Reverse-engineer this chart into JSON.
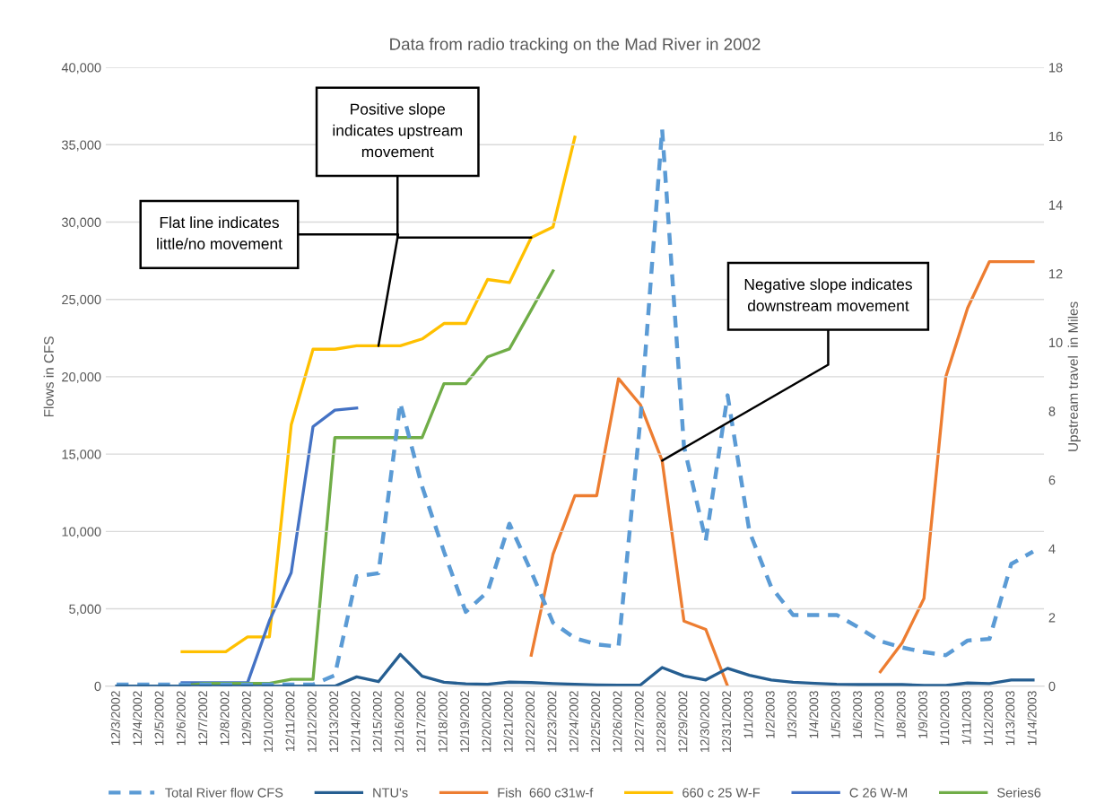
{
  "chart_data": {
    "type": "line",
    "title": "Data from radio tracking on the Mad River in 2002",
    "ylabel": "Flows in CFS",
    "y2label": "Upstream travel  in Miles",
    "categories": [
      "12/3/2002",
      "12/4/2002",
      "12/5/2002",
      "12/6/2002",
      "12/7/2002",
      "12/8/2002",
      "12/9/2002",
      "12/10/2002",
      "12/11/2002",
      "12/12/2002",
      "12/13/2002",
      "12/14/2002",
      "12/15/2002",
      "12/16/2002",
      "12/17/2002",
      "12/18/2002",
      "12/19/2002",
      "12/20/2002",
      "12/21/2002",
      "12/22/2002",
      "12/23/2002",
      "12/24/2002",
      "12/25/2002",
      "12/26/2002",
      "12/27/2002",
      "12/28/2002",
      "12/29/2002",
      "12/30/2002",
      "12/31/2002",
      "1/1/2003",
      "1/2/2003",
      "1/3/2003",
      "1/4/2003",
      "1/5/2003",
      "1/6/2003",
      "1/7/2003",
      "1/8/2003",
      "1/9/2003",
      "1/10/2003",
      "1/11/2003",
      "1/12/2003",
      "1/13/2003",
      "1/14/2003"
    ],
    "series": [
      {
        "name": "Total River flow CFS",
        "color": "#5b9bd5",
        "line_style": "dashed",
        "values": [
          100,
          100,
          100,
          100,
          100,
          100,
          100,
          100,
          100,
          100,
          700,
          7100,
          7300,
          18300,
          12900,
          8700,
          4800,
          6100,
          10500,
          7400,
          4100,
          3100,
          2700,
          2550,
          17200,
          36000,
          15500,
          9400,
          18800,
          10000,
          6400,
          4600,
          4600,
          4600,
          3800,
          2900,
          2500,
          2200,
          2000,
          2950,
          3050,
          7900,
          8700
        ]
      },
      {
        "name": "NTU's",
        "color": "#255e91",
        "line_style": "solid",
        "values": [
          0,
          0,
          0,
          0,
          0,
          0,
          0,
          0,
          0,
          0,
          0,
          600,
          290,
          2050,
          640,
          250,
          150,
          120,
          260,
          230,
          170,
          120,
          80,
          60,
          70,
          1200,
          660,
          400,
          1150,
          700,
          400,
          250,
          180,
          120,
          100,
          100,
          100,
          50,
          50,
          200,
          170,
          400,
          400
        ]
      },
      {
        "name": "Fish  660 c31w-f",
        "color": "#ed7d31",
        "line_style": "solid",
        "axis": "y2",
        "values": [
          null,
          null,
          null,
          null,
          null,
          null,
          null,
          null,
          null,
          null,
          null,
          null,
          null,
          null,
          null,
          null,
          null,
          null,
          null,
          0.9,
          3.84,
          5.54,
          5.54,
          8.95,
          8.19,
          6.56,
          1.89,
          1.65,
          0,
          null,
          null,
          null,
          null,
          null,
          null,
          0.42,
          1.26,
          2.55,
          9.0,
          11.0,
          12.35,
          12.35,
          12.35
        ]
      },
      {
        "name": "660 c 25 W-F",
        "color": "#ffc000",
        "line_style": "solid",
        "axis": "y2",
        "values": [
          null,
          null,
          null,
          1.0,
          1.0,
          1.0,
          1.43,
          1.43,
          7.6,
          9.8,
          9.8,
          9.9,
          9.9,
          9.9,
          10.1,
          10.55,
          10.55,
          11.83,
          11.74,
          13.05,
          13.36,
          15.97,
          null,
          null,
          null,
          null,
          null,
          null,
          null,
          null,
          null,
          null,
          null,
          null,
          null,
          null,
          null,
          null,
          null,
          null,
          null,
          null,
          null
        ]
      },
      {
        "name": "C 26 W-M",
        "color": "#4472c4",
        "line_style": "solid",
        "axis": "y2",
        "values": [
          null,
          null,
          null,
          0.1,
          0.1,
          0.1,
          0.1,
          1.9,
          3.3,
          7.55,
          8.03,
          8.09,
          null,
          null,
          null,
          null,
          null,
          null,
          null,
          null,
          null,
          null,
          null,
          null,
          null,
          null,
          null,
          null,
          null,
          null,
          null,
          null,
          null,
          null,
          null,
          null,
          null,
          null,
          null,
          null,
          null,
          null,
          null
        ]
      },
      {
        "name": "Series6",
        "color": "#70ad47",
        "line_style": "solid",
        "axis": "y2",
        "values": [
          null,
          null,
          null,
          0,
          0.08,
          0.08,
          0.08,
          0.08,
          0.2,
          0.2,
          7.23,
          7.23,
          7.23,
          7.23,
          7.23,
          8.8,
          8.8,
          9.58,
          9.81,
          10.94,
          12.08,
          null,
          null,
          null,
          null,
          null,
          null,
          null,
          null,
          null,
          null,
          null,
          null,
          null,
          null,
          null,
          null,
          null,
          null,
          null,
          null,
          null,
          null
        ]
      }
    ],
    "ylim": [
      0,
      40000
    ],
    "yticks": [
      {
        "value": 0,
        "label": "0"
      },
      {
        "value": 5000,
        "label": "5,000"
      },
      {
        "value": 10000,
        "label": "10,000"
      },
      {
        "value": 15000,
        "label": "15,000"
      },
      {
        "value": 20000,
        "label": "20,000"
      },
      {
        "value": 25000,
        "label": "25,000"
      },
      {
        "value": 30000,
        "label": "30,000"
      },
      {
        "value": 35000,
        "label": "35,000"
      },
      {
        "value": 40000,
        "label": "40,000"
      }
    ],
    "y2lim": [
      0,
      18
    ],
    "y2ticks": [
      0,
      2,
      4,
      6,
      8,
      10,
      12,
      14,
      16,
      18
    ],
    "annotations": [
      {
        "text": "Flat line indicates\nlittle/no movement",
        "x": "12/15/2002",
        "y": 22000
      },
      {
        "text": "Positive slope\nindicates upstream\nmovement",
        "x": "12/22/2002",
        "y": 29000
      },
      {
        "text": "Negative slope indicates\ndownstream movement",
        "x": "12/28/2002",
        "y": 14580
      }
    ],
    "grid": true,
    "legend": "bottom",
    "marker": "none"
  }
}
